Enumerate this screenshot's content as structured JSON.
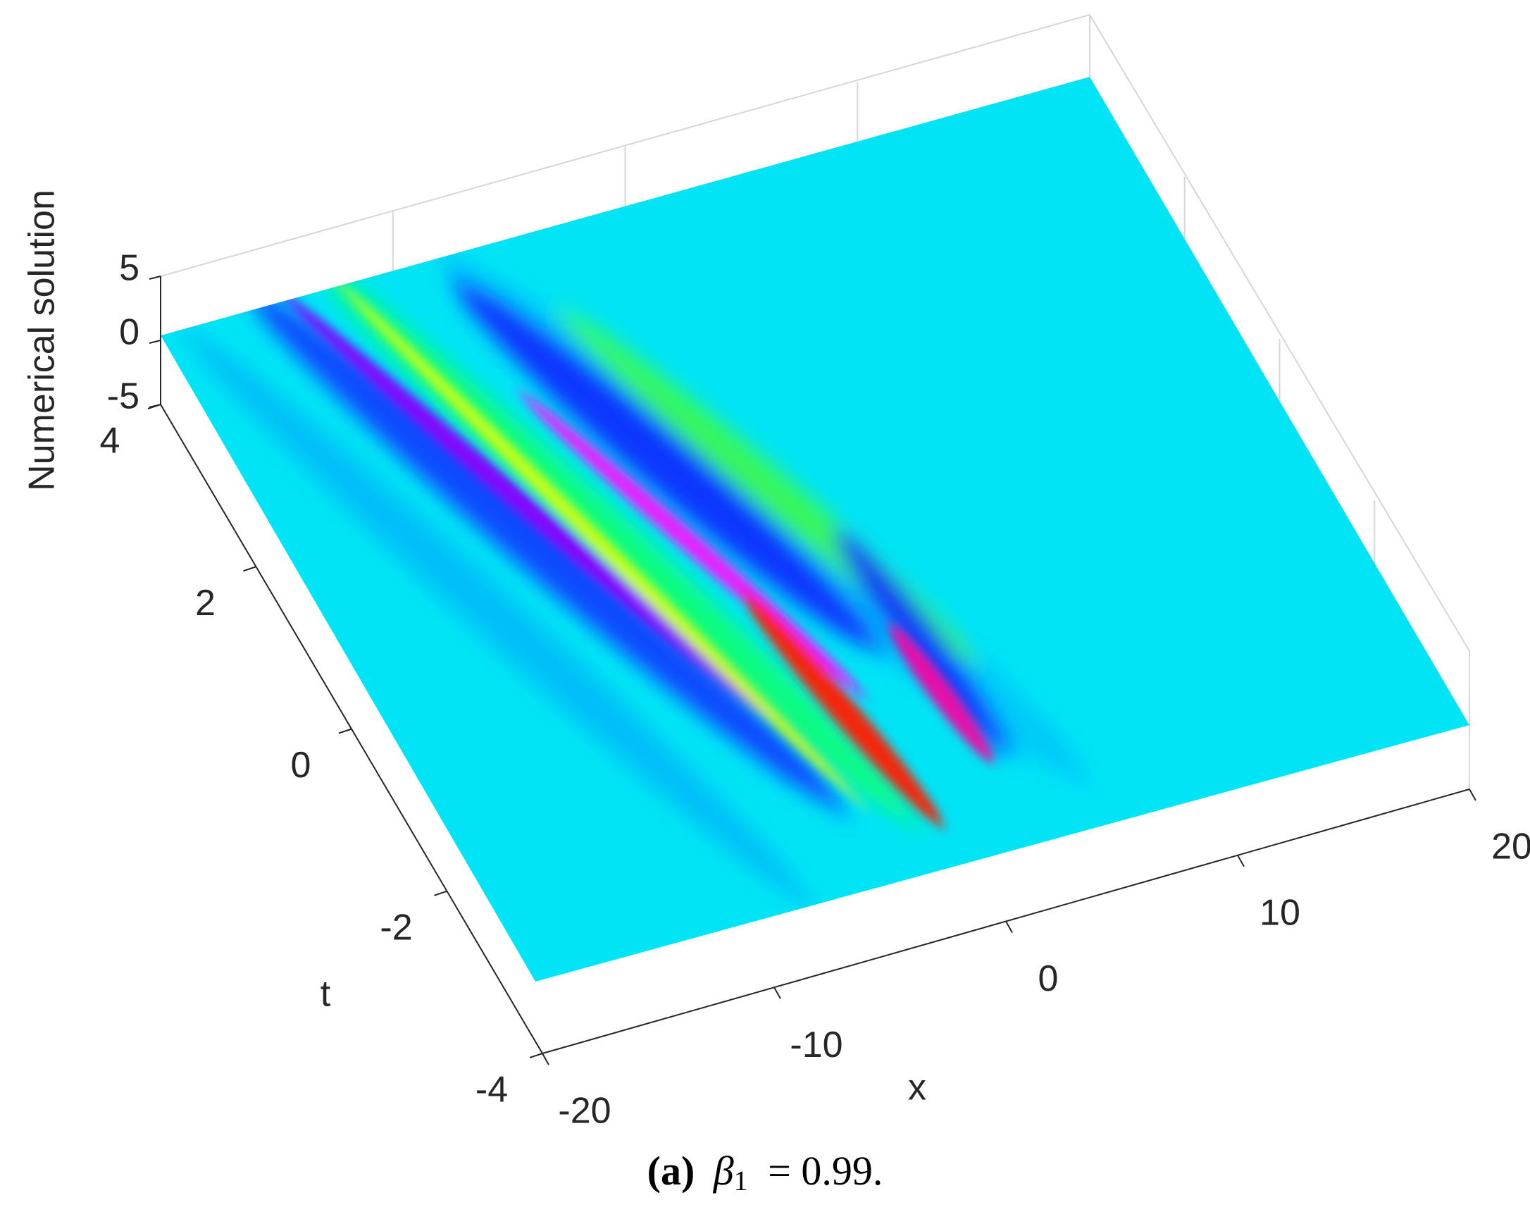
{
  "chart_data": {
    "type": "surface",
    "zlabel": "Numerical solution",
    "xlabel": "x",
    "ylabel": "t",
    "xlim": [
      -20,
      20
    ],
    "xticks": [
      -20,
      -10,
      0,
      10,
      20
    ],
    "ylim": [
      -4,
      4
    ],
    "yticks": [
      -4,
      -2,
      0,
      2,
      4
    ],
    "zlim": [
      -5,
      5
    ],
    "zticks": [
      -5,
      0,
      5
    ],
    "grid": true,
    "colormap": "hsv"
  },
  "caption": {
    "label": "(a)",
    "symbol": "β",
    "subscript": "1",
    "equation": "= 0.99."
  }
}
